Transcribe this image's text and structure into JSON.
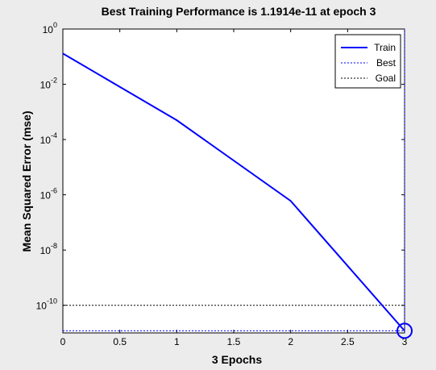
{
  "chart_data": {
    "type": "line",
    "title": "Best Training Performance is 1.1914e-11 at epoch 3",
    "xlabel": "3 Epochs",
    "ylabel": "Mean Squared Error  (mse)",
    "xlim": [
      0,
      3
    ],
    "ylim": [
      1e-11,
      1
    ],
    "yscale": "log",
    "x_ticks": [
      "0",
      "0.5",
      "1",
      "1.5",
      "2",
      "2.5",
      "3"
    ],
    "y_ticks": [
      {
        "base": "10",
        "exp": "0"
      },
      {
        "base": "10",
        "exp": "-2"
      },
      {
        "base": "10",
        "exp": "-4"
      },
      {
        "base": "10",
        "exp": "-6"
      },
      {
        "base": "10",
        "exp": "-8"
      },
      {
        "base": "10",
        "exp": "-10"
      }
    ],
    "grid": false,
    "legend_position": "top-right",
    "series": [
      {
        "name": "Train",
        "style": "solid",
        "color": "#0000ff",
        "x": [
          0,
          1,
          2,
          3
        ],
        "y": [
          0.13,
          0.0005,
          6e-07,
          1.1914e-11
        ]
      },
      {
        "name": "Best",
        "style": "dotted",
        "color": "#0000ff",
        "best_x": 3,
        "best_y": 1.1914e-11
      },
      {
        "name": "Goal",
        "style": "dotted",
        "color": "#000000",
        "y": 1e-10
      }
    ]
  }
}
